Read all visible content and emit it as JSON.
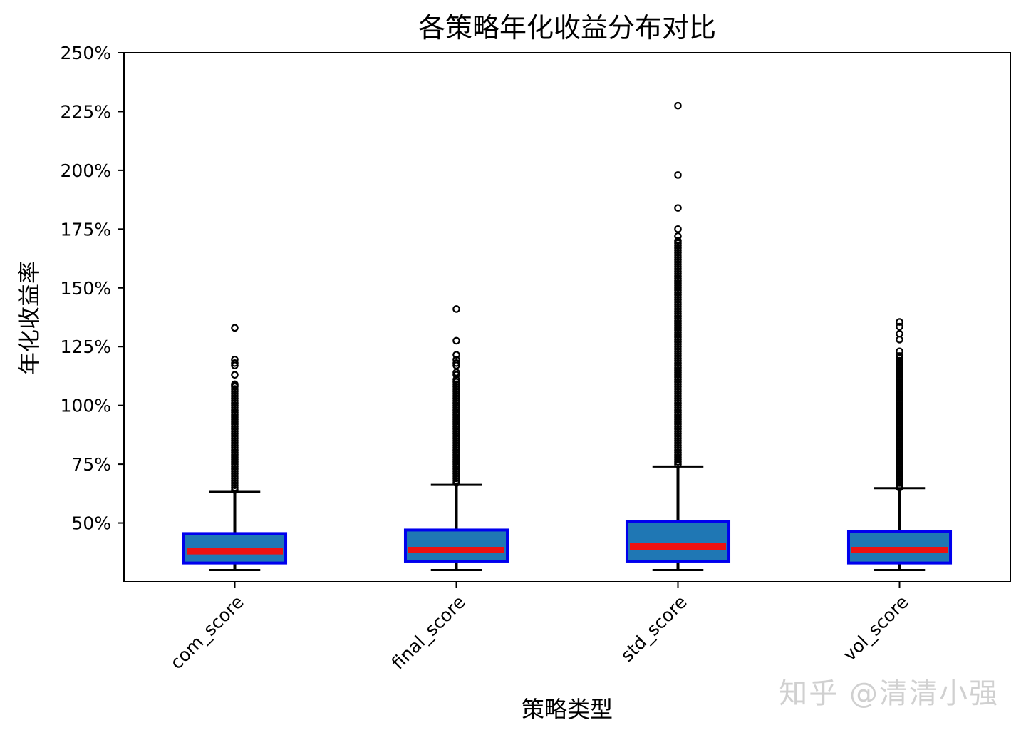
{
  "chart_data": {
    "type": "box",
    "title": "各策略年化收益分布对比",
    "xlabel": "策略类型",
    "ylabel": "年化收益率",
    "ylim": [
      0.25,
      2.5
    ],
    "yticks": [
      0.5,
      0.75,
      1.0,
      1.25,
      1.5,
      1.75,
      2.0,
      2.25,
      2.5
    ],
    "ytick_labels": [
      "50%",
      "75%",
      "100%",
      "125%",
      "150%",
      "175%",
      "200%",
      "225%",
      "250%"
    ],
    "categories": [
      "com_score",
      "final_score",
      "std_score",
      "vol_score"
    ],
    "boxes": [
      {
        "whislo": 0.3,
        "q1": 0.33,
        "med": 0.38,
        "q3": 0.455,
        "whishi": 0.632,
        "fliers": [
          1.33,
          1.195,
          1.18,
          1.17,
          1.13,
          1.09,
          1.085,
          1.08,
          1.07,
          1.06,
          1.05,
          1.04,
          1.03,
          1.02,
          1.01,
          1.0,
          0.99,
          0.98,
          0.97,
          0.96,
          0.95,
          0.94,
          0.93,
          0.92,
          0.91,
          0.9,
          0.89,
          0.88,
          0.87,
          0.86,
          0.85,
          0.84,
          0.83,
          0.82,
          0.81,
          0.8,
          0.79,
          0.78,
          0.77,
          0.76,
          0.75,
          0.74,
          0.73,
          0.72,
          0.71,
          0.7,
          0.69,
          0.68,
          0.67,
          0.66,
          0.65,
          0.64
        ]
      },
      {
        "whislo": 0.3,
        "q1": 0.335,
        "med": 0.385,
        "q3": 0.47,
        "whishi": 0.662,
        "fliers": [
          1.41,
          1.275,
          1.215,
          1.195,
          1.18,
          1.17,
          1.14,
          1.13,
          1.11,
          1.1,
          1.09,
          1.08,
          1.07,
          1.06,
          1.05,
          1.04,
          1.03,
          1.02,
          1.01,
          1.0,
          0.99,
          0.98,
          0.97,
          0.96,
          0.95,
          0.94,
          0.93,
          0.92,
          0.91,
          0.9,
          0.89,
          0.88,
          0.87,
          0.86,
          0.85,
          0.84,
          0.83,
          0.82,
          0.81,
          0.8,
          0.79,
          0.78,
          0.77,
          0.76,
          0.75,
          0.74,
          0.73,
          0.72,
          0.71,
          0.7,
          0.69,
          0.68,
          0.67
        ]
      },
      {
        "whislo": 0.3,
        "q1": 0.335,
        "med": 0.4,
        "q3": 0.505,
        "whishi": 0.74,
        "fliers": [
          2.275,
          1.98,
          1.84,
          1.75,
          1.72,
          1.7,
          1.69,
          1.68,
          1.67,
          1.66,
          1.65,
          1.64,
          1.63,
          1.62,
          1.61,
          1.6,
          1.59,
          1.58,
          1.57,
          1.56,
          1.55,
          1.54,
          1.53,
          1.52,
          1.51,
          1.5,
          1.49,
          1.48,
          1.47,
          1.46,
          1.45,
          1.44,
          1.43,
          1.42,
          1.41,
          1.4,
          1.39,
          1.38,
          1.37,
          1.36,
          1.35,
          1.34,
          1.33,
          1.32,
          1.31,
          1.3,
          1.29,
          1.28,
          1.27,
          1.26,
          1.25,
          1.24,
          1.23,
          1.22,
          1.21,
          1.2,
          1.19,
          1.18,
          1.17,
          1.16,
          1.15,
          1.14,
          1.13,
          1.12,
          1.11,
          1.1,
          1.09,
          1.08,
          1.07,
          1.06,
          1.05,
          1.04,
          1.03,
          1.02,
          1.01,
          1.0,
          0.99,
          0.98,
          0.97,
          0.96,
          0.95,
          0.94,
          0.93,
          0.92,
          0.91,
          0.9,
          0.89,
          0.88,
          0.87,
          0.86,
          0.85,
          0.84,
          0.83,
          0.82,
          0.81,
          0.8,
          0.79,
          0.78,
          0.77,
          0.76,
          0.75
        ]
      },
      {
        "whislo": 0.3,
        "q1": 0.33,
        "med": 0.385,
        "q3": 0.465,
        "whishi": 0.648,
        "fliers": [
          1.355,
          1.335,
          1.305,
          1.28,
          1.23,
          1.21,
          1.2,
          1.19,
          1.18,
          1.17,
          1.16,
          1.15,
          1.14,
          1.13,
          1.12,
          1.11,
          1.1,
          1.09,
          1.08,
          1.07,
          1.06,
          1.05,
          1.04,
          1.03,
          1.02,
          1.01,
          1.0,
          0.99,
          0.98,
          0.97,
          0.96,
          0.95,
          0.94,
          0.93,
          0.92,
          0.91,
          0.9,
          0.89,
          0.88,
          0.87,
          0.86,
          0.85,
          0.84,
          0.83,
          0.82,
          0.81,
          0.8,
          0.79,
          0.78,
          0.77,
          0.76,
          0.75,
          0.74,
          0.73,
          0.72,
          0.71,
          0.7,
          0.69,
          0.68,
          0.67,
          0.66,
          0.65
        ]
      }
    ],
    "grid": false,
    "colors": {
      "box_face": "#1f77b4",
      "box_edge": "#0000ee",
      "median": "#ee1111",
      "whisker": "#000000"
    }
  },
  "watermark": "知乎 @清清小强"
}
